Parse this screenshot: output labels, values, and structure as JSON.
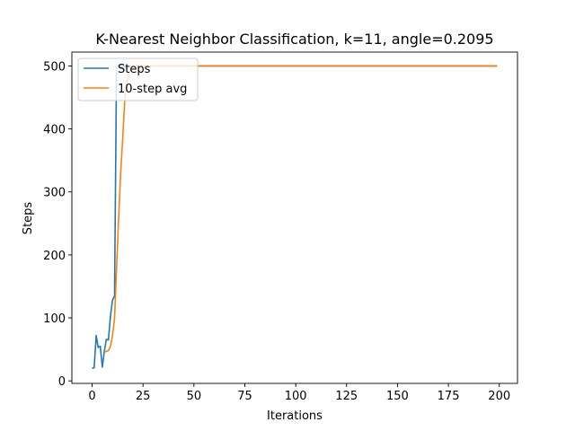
{
  "chart_data": {
    "type": "line",
    "title": "K-Nearest Neighbor Classification, k=11, angle=0.2095",
    "xlabel": "Iterations",
    "ylabel": "Steps",
    "xlim": [
      -9.95,
      208.95
    ],
    "ylim": [
      -4.0,
      522.0
    ],
    "xticks": [
      0,
      25,
      50,
      75,
      100,
      125,
      150,
      175,
      200
    ],
    "yticks": [
      0,
      100,
      200,
      300,
      400,
      500
    ],
    "grid": false,
    "legend_position": "top-left",
    "series": [
      {
        "name": "Steps",
        "color": "#1f77b4",
        "x": [
          0,
          1,
          2,
          3,
          4,
          5,
          6,
          7,
          8,
          9,
          10,
          11,
          12,
          13,
          14,
          15,
          199
        ],
        "y": [
          20,
          21,
          72,
          53,
          55,
          22,
          47,
          66,
          65,
          102,
          128,
          135,
          500,
          500,
          500,
          500,
          500
        ]
      },
      {
        "name": "10-step avg",
        "color": "#ff7f0e",
        "x": [
          6,
          7,
          8,
          9,
          10,
          11,
          12,
          13,
          14,
          15,
          16,
          17,
          18,
          19,
          20,
          21,
          199
        ],
        "y": [
          45,
          47,
          48,
          55,
          72,
          99,
          177,
          257,
          330,
          383,
          444,
          470,
          489,
          497,
          500,
          500,
          500
        ]
      }
    ]
  }
}
